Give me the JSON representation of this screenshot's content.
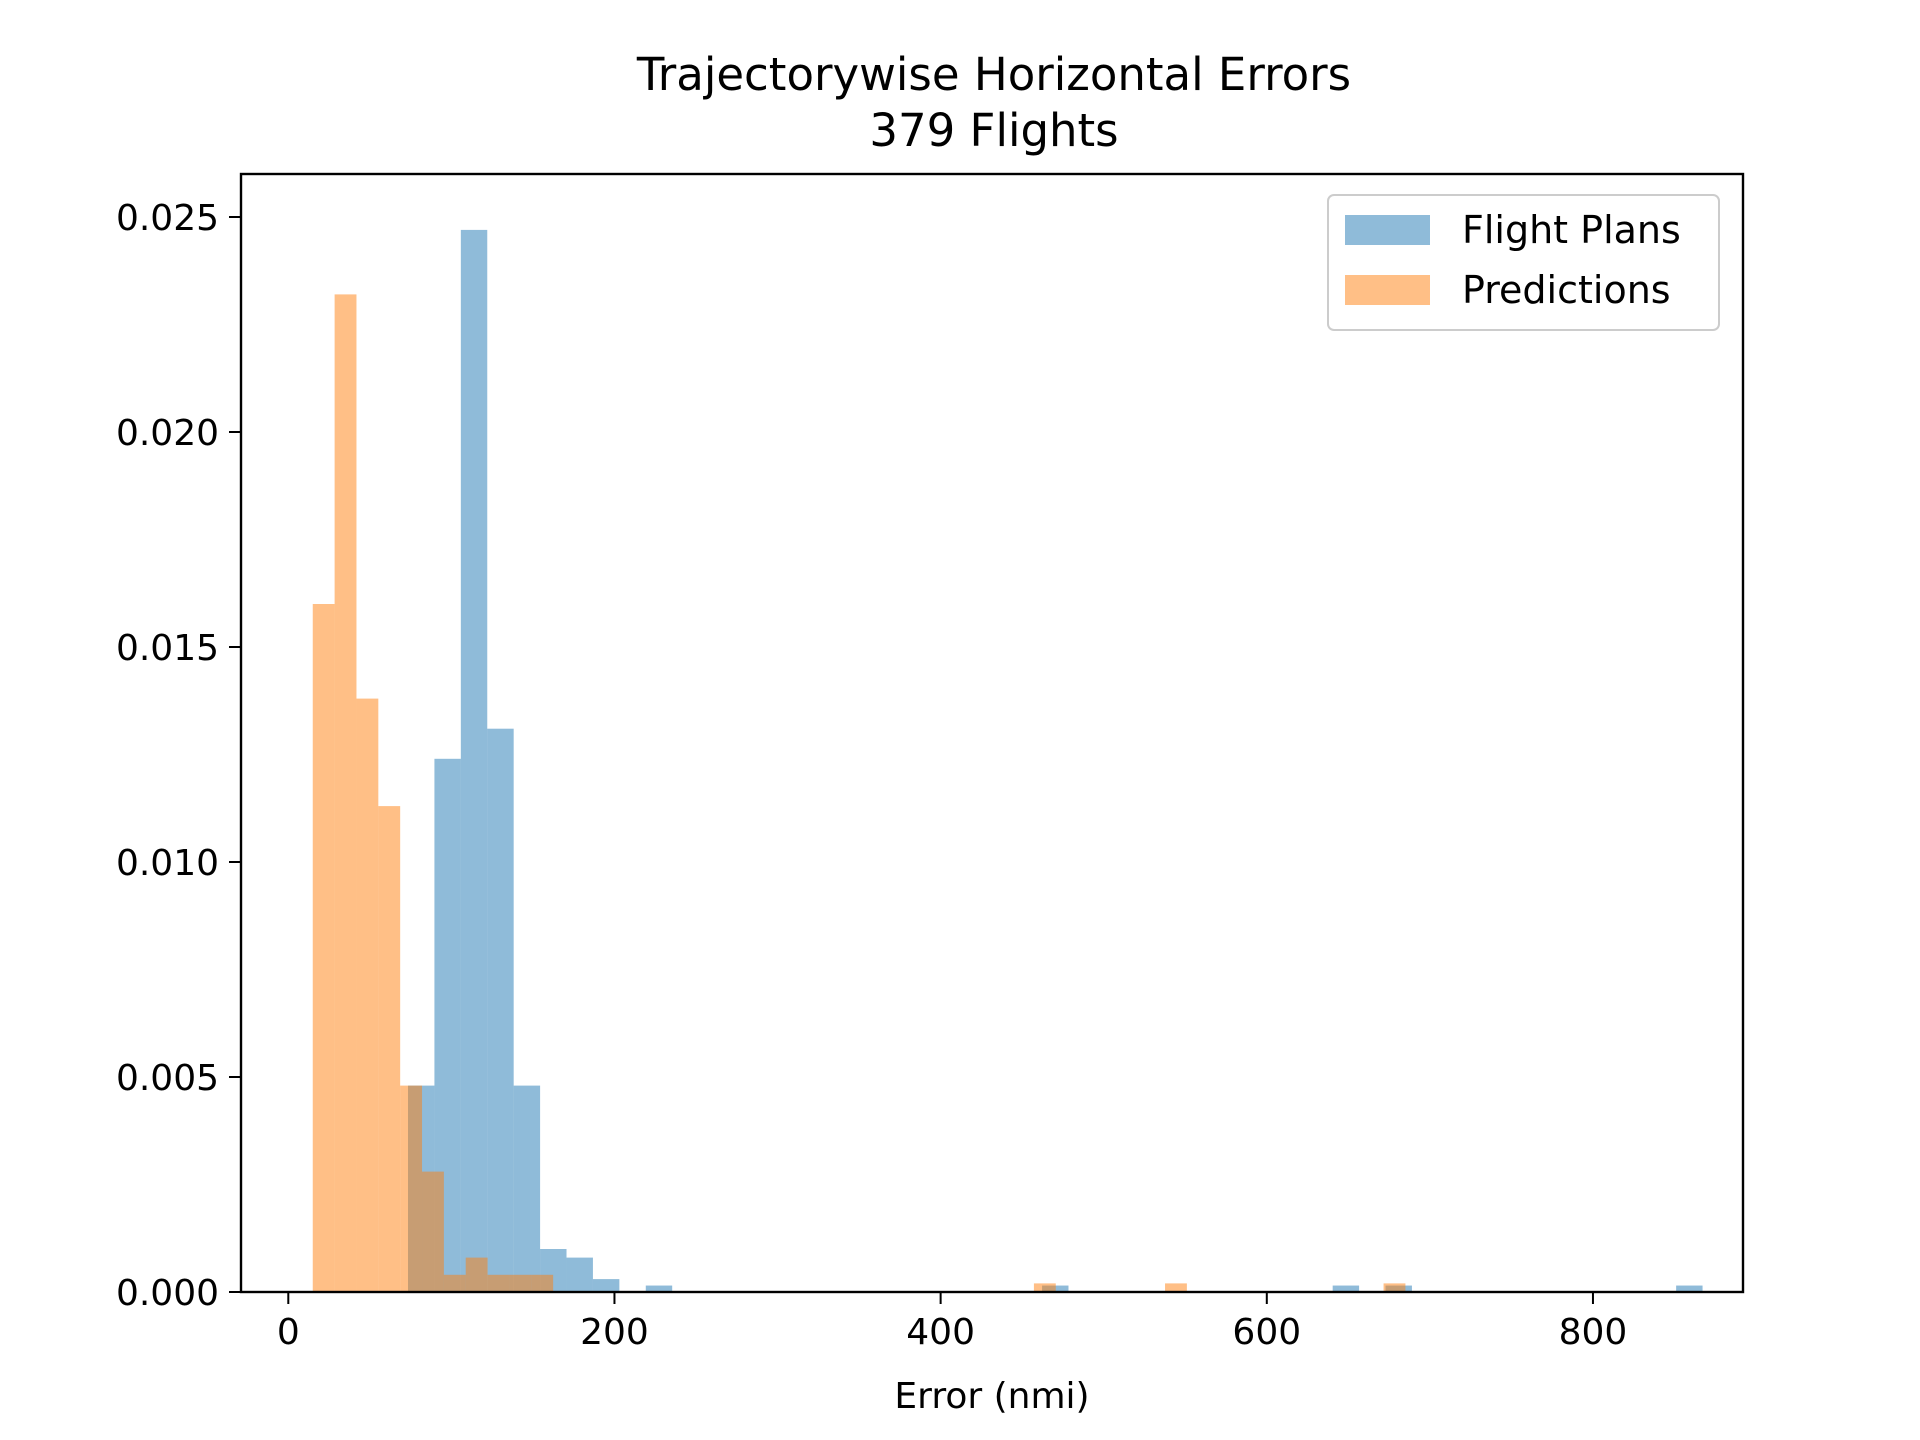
{
  "chart_data": {
    "type": "bar",
    "title": "Trajectorywise Horizontal Errors",
    "subtitle": "379 Flights",
    "xlabel": "Error (nmi)",
    "ylabel": "",
    "xlim": [
      -29,
      892
    ],
    "ylim": [
      0,
      0.026
    ],
    "xticks": [
      0,
      200,
      400,
      600,
      800
    ],
    "yticks": [
      0.0,
      0.005,
      0.01,
      0.015,
      0.02,
      0.025
    ],
    "xtick_labels": [
      "0",
      "200",
      "400",
      "600",
      "800"
    ],
    "ytick_labels": [
      "0.000",
      "0.005",
      "0.010",
      "0.015",
      "0.020",
      "0.025"
    ],
    "grid": false,
    "legend_position": "top-right",
    "series": [
      {
        "name": "Flight Plans",
        "color": "#1f77b4",
        "opacity": 0.5,
        "bin_width": 16.2,
        "bins": [
          {
            "x": 73.4,
            "value": 0.0048
          },
          {
            "x": 89.6,
            "value": 0.0124
          },
          {
            "x": 105.8,
            "value": 0.0247
          },
          {
            "x": 122.0,
            "value": 0.0131
          },
          {
            "x": 138.2,
            "value": 0.0048
          },
          {
            "x": 154.4,
            "value": 0.001
          },
          {
            "x": 170.6,
            "value": 0.0008
          },
          {
            "x": 186.8,
            "value": 0.0003
          },
          {
            "x": 219.2,
            "value": 0.00015
          },
          {
            "x": 462.2,
            "value": 0.00015
          },
          {
            "x": 640.4,
            "value": 0.00015
          },
          {
            "x": 672.8,
            "value": 0.00015
          },
          {
            "x": 851.0,
            "value": 0.00015
          }
        ]
      },
      {
        "name": "Predictions",
        "color": "#ff7f0e",
        "opacity": 0.5,
        "bin_width": 13.4,
        "bins": [
          {
            "x": 15,
            "value": 0.016
          },
          {
            "x": 28.4,
            "value": 0.0232
          },
          {
            "x": 41.8,
            "value": 0.0138
          },
          {
            "x": 55.2,
            "value": 0.0113
          },
          {
            "x": 68.6,
            "value": 0.0048
          },
          {
            "x": 82.0,
            "value": 0.0028
          },
          {
            "x": 95.4,
            "value": 0.0004
          },
          {
            "x": 108.8,
            "value": 0.0008
          },
          {
            "x": 122.2,
            "value": 0.0004
          },
          {
            "x": 135.6,
            "value": 0.0004
          },
          {
            "x": 149.0,
            "value": 0.0004
          },
          {
            "x": 457.2,
            "value": 0.0002
          },
          {
            "x": 537.6,
            "value": 0.0002
          },
          {
            "x": 671.6,
            "value": 0.0002
          }
        ]
      }
    ]
  }
}
